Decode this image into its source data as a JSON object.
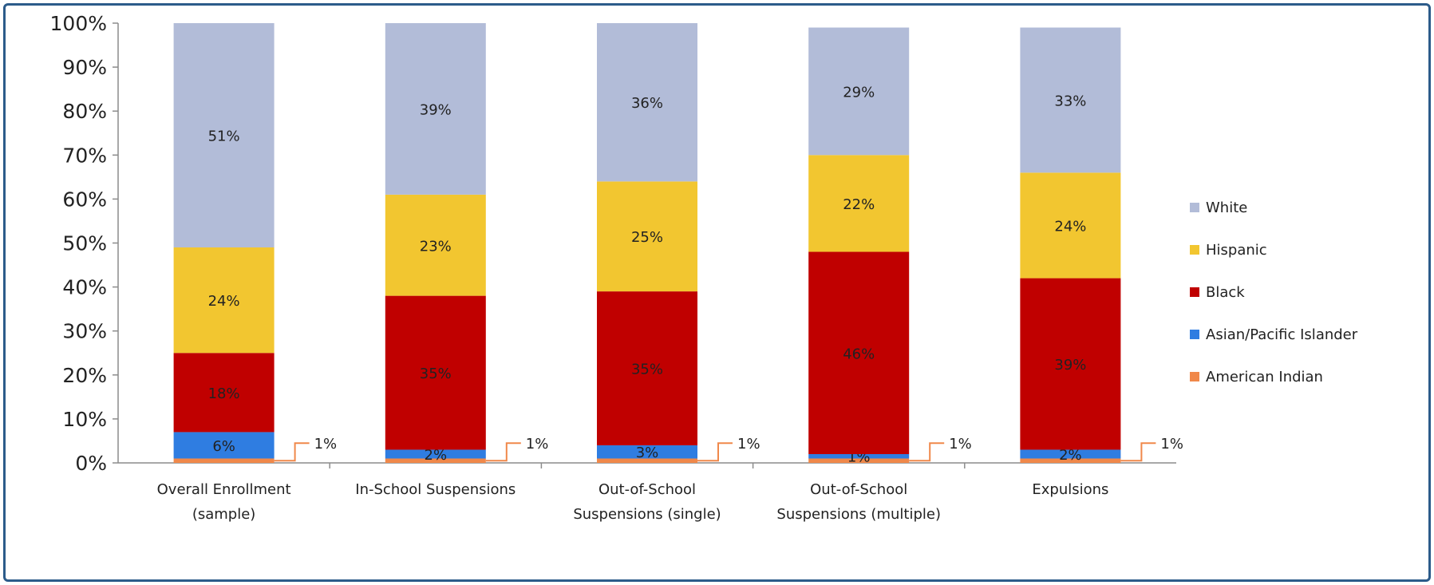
{
  "chart_data": {
    "type": "bar",
    "stacked": true,
    "categories": [
      [
        "Overall Enrollment",
        "(sample)"
      ],
      [
        "In-School Suspensions"
      ],
      [
        "Out-of-School",
        "Suspensions (single)"
      ],
      [
        "Out-of-School",
        "Suspensions (multiple)"
      ],
      [
        "Expulsions"
      ]
    ],
    "ylim": [
      0,
      100
    ],
    "yticks": [
      "0%",
      "10%",
      "20%",
      "30%",
      "40%",
      "50%",
      "60%",
      "70%",
      "80%",
      "90%",
      "100%"
    ],
    "legend_position": "right",
    "series": [
      {
        "name": "American Indian",
        "color": "#f0884a",
        "values": [
          1,
          1,
          1,
          1,
          1
        ],
        "labels": [
          "1%",
          "1%",
          "1%",
          "1%",
          "1%"
        ]
      },
      {
        "name": "Asian/Pacific Islander",
        "color": "#2f7de1",
        "values": [
          6,
          2,
          3,
          1,
          2
        ],
        "labels": [
          "6%",
          "2%",
          "3%",
          "1%",
          "2%"
        ]
      },
      {
        "name": "Black",
        "color": "#c00000",
        "values": [
          18,
          35,
          35,
          46,
          39
        ],
        "labels": [
          "18%",
          "35%",
          "35%",
          "46%",
          "39%"
        ]
      },
      {
        "name": "Hispanic",
        "color": "#f2c630",
        "values": [
          24,
          23,
          25,
          22,
          24
        ],
        "labels": [
          "24%",
          "23%",
          "25%",
          "22%",
          "24%"
        ]
      },
      {
        "name": "White",
        "color": "#b2bcd8",
        "values": [
          51,
          39,
          36,
          29,
          33
        ],
        "labels": [
          "51%",
          "39%",
          "36%",
          "29%",
          "33%"
        ]
      }
    ],
    "legend_order": [
      "White",
      "Hispanic",
      "Black",
      "Asian/Pacific Islander",
      "American Indian"
    ],
    "grid": false
  }
}
